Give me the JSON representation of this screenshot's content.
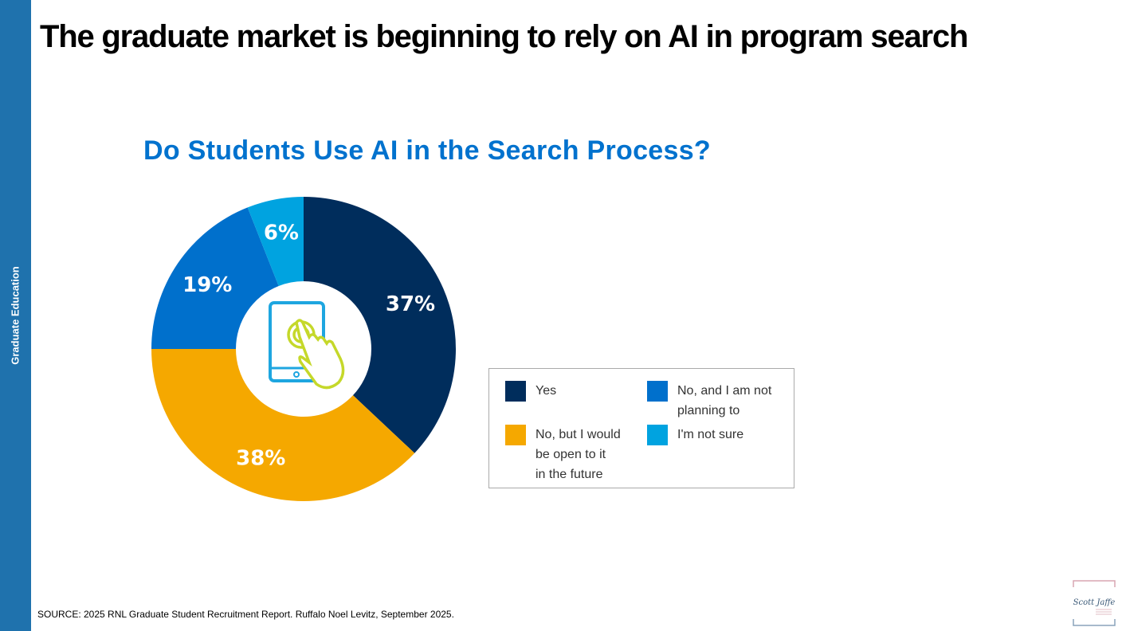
{
  "sidebar": {
    "label": "Graduate Education"
  },
  "title": "The graduate market is beginning to rely on AI in program search",
  "source": "SOURCE: 2025 RNL Graduate Student Recruitment Report. Ruffalo Noel Levitz, September 2025.",
  "logo": {
    "text": "Scott Jaffe"
  },
  "chart_data": {
    "type": "pie",
    "donut": true,
    "title": "Do Students Use AI in the Search Process?",
    "center_icon": "tablet-tap-icon",
    "legend_placement": "right",
    "slices": [
      {
        "name": "Yes",
        "value": 37,
        "label": "37%",
        "color": "#002d5c"
      },
      {
        "name": "No, but I would be open to it in the future",
        "value": 38,
        "label": "38%",
        "color": "#f5a800"
      },
      {
        "name": "No, and I am not planning to",
        "value": 19,
        "label": "19%",
        "color": "#0070cc"
      },
      {
        "name": "I'm not sure",
        "value": 6,
        "label": "6%",
        "color": "#00a3e0"
      }
    ],
    "legend": [
      {
        "lines": [
          "Yes"
        ],
        "color": "#002d5c"
      },
      {
        "lines": [
          "No, and I am not",
          "planning to"
        ],
        "color": "#0070cc"
      },
      {
        "lines": [
          "No, but I would",
          "be open to it",
          "in the future"
        ],
        "color": "#f5a800"
      },
      {
        "lines": [
          "I'm not sure"
        ],
        "color": "#00a3e0"
      }
    ]
  }
}
